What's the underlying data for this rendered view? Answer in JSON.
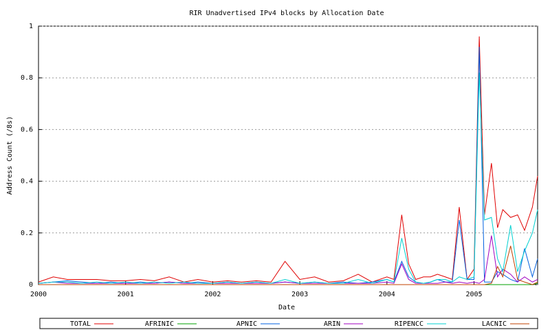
{
  "chart_data": {
    "type": "line",
    "title": "RIR Unadvertised  IPv4 blocks by Allocation Date",
    "x_label": "Date",
    "y_label": "Address Count (/8s)",
    "x": [
      2000.0,
      2000.17,
      2000.33,
      2000.5,
      2000.67,
      2000.83,
      2001.0,
      2001.17,
      2001.33,
      2001.5,
      2001.67,
      2001.83,
      2002.0,
      2002.17,
      2002.33,
      2002.5,
      2002.67,
      2002.83,
      2003.0,
      2003.17,
      2003.33,
      2003.5,
      2003.67,
      2003.83,
      2004.0,
      2004.08,
      2004.17,
      2004.25,
      2004.33,
      2004.42,
      2004.5,
      2004.58,
      2004.67,
      2004.75,
      2004.83,
      2004.92,
      2005.0,
      2005.06,
      2005.12,
      2005.2,
      2005.27,
      2005.33,
      2005.42,
      2005.5,
      2005.58,
      2005.67,
      2005.73
    ],
    "series": [
      {
        "name": "TOTAL",
        "color": "#e00000",
        "values": [
          0.01,
          0.03,
          0.02,
          0.02,
          0.02,
          0.015,
          0.015,
          0.02,
          0.015,
          0.03,
          0.01,
          0.02,
          0.01,
          0.015,
          0.01,
          0.015,
          0.01,
          0.09,
          0.02,
          0.03,
          0.01,
          0.015,
          0.04,
          0.01,
          0.03,
          0.02,
          0.27,
          0.08,
          0.02,
          0.03,
          0.03,
          0.04,
          0.03,
          0.02,
          0.3,
          0.02,
          0.06,
          0.96,
          0.27,
          0.47,
          0.22,
          0.29,
          0.26,
          0.27,
          0.21,
          0.3,
          0.42
        ]
      },
      {
        "name": "AFRINIC",
        "color": "#00a000",
        "values": [
          0,
          0,
          0,
          0,
          0,
          0,
          0,
          0,
          0,
          0,
          0,
          0,
          0,
          0,
          0,
          0,
          0,
          0,
          0,
          0,
          0,
          0,
          0,
          0,
          0,
          0,
          0,
          0,
          0,
          0,
          0,
          0,
          0,
          0,
          0,
          0,
          0,
          0,
          0,
          0,
          0,
          0,
          0,
          0,
          0,
          0,
          0.005
        ]
      },
      {
        "name": "APNIC",
        "color": "#0060e0",
        "values": [
          0.005,
          0.01,
          0.015,
          0.01,
          0.005,
          0.01,
          0.005,
          0.01,
          0.005,
          0.01,
          0.005,
          0.01,
          0.005,
          0.01,
          0.005,
          0.01,
          0.005,
          0.01,
          0.005,
          0.01,
          0.005,
          0.01,
          0.005,
          0.01,
          0.02,
          0.01,
          0.09,
          0.03,
          0.01,
          0.005,
          0.01,
          0.02,
          0.01,
          0.01,
          0.25,
          0.02,
          0.02,
          0.92,
          0.01,
          0.01,
          0.05,
          0.04,
          0.02,
          0.01,
          0.14,
          0.03,
          0.1
        ]
      },
      {
        "name": "ARIN",
        "color": "#a000c0",
        "values": [
          0.005,
          0.01,
          0.005,
          0.005,
          0.005,
          0.005,
          0.005,
          0.005,
          0.005,
          0.01,
          0.005,
          0.005,
          0.005,
          0.005,
          0.005,
          0.005,
          0.005,
          0.01,
          0.005,
          0.005,
          0.005,
          0.005,
          0.005,
          0.005,
          0.01,
          0.005,
          0.08,
          0.02,
          0.005,
          0.005,
          0.005,
          0.005,
          0.01,
          0.005,
          0.01,
          0.005,
          0.01,
          0.005,
          0.02,
          0.19,
          0.03,
          0.06,
          0.04,
          0.01,
          0.03,
          0.01,
          0.02
        ]
      },
      {
        "name": "RIPENCC",
        "color": "#00d0d0",
        "values": [
          0.005,
          0.01,
          0.01,
          0.005,
          0.01,
          0.005,
          0.01,
          0.005,
          0.01,
          0.005,
          0.01,
          0.005,
          0.005,
          0.01,
          0.005,
          0.01,
          0.005,
          0.02,
          0.005,
          0.01,
          0.005,
          0.005,
          0.02,
          0.005,
          0.02,
          0.01,
          0.18,
          0.06,
          0.01,
          0.005,
          0.01,
          0.02,
          0.02,
          0.01,
          0.03,
          0.02,
          0.03,
          0.82,
          0.25,
          0.26,
          0.1,
          0.05,
          0.23,
          0.05,
          0.13,
          0.2,
          0.29
        ]
      },
      {
        "name": "LACNIC",
        "color": "#c04000",
        "values": [
          0,
          0,
          0,
          0,
          0,
          0,
          0,
          0,
          0,
          0,
          0,
          0,
          0,
          0,
          0,
          0,
          0,
          0,
          0,
          0,
          0,
          0,
          0,
          0,
          0,
          0,
          0,
          0,
          0,
          0,
          0,
          0,
          0,
          0,
          0,
          0,
          0,
          0,
          0,
          0.005,
          0.07,
          0.03,
          0.15,
          0.02,
          0.01,
          0,
          0.01
        ]
      }
    ],
    "xlim": [
      2000,
      2005.73
    ],
    "ylim": [
      0,
      1
    ],
    "xticks": [
      2000,
      2001,
      2002,
      2003,
      2004,
      2005
    ],
    "yticks": [
      0,
      0.2,
      0.4,
      0.6,
      0.8,
      1
    ],
    "grid": true,
    "legend": "bottom"
  }
}
